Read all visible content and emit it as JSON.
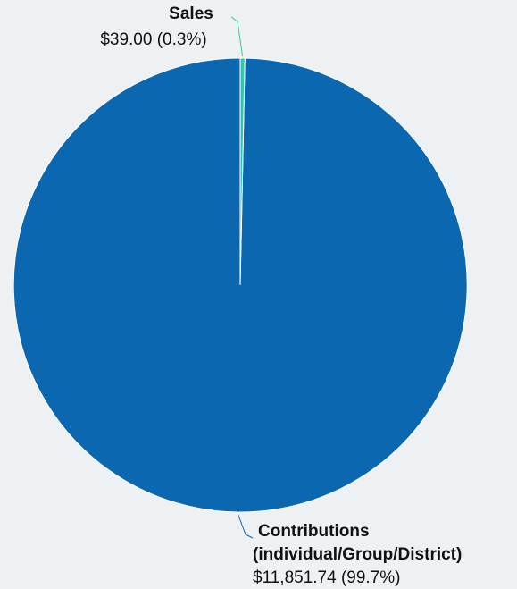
{
  "chart_data": {
    "type": "pie",
    "slices": [
      {
        "name": "Sales",
        "value": 39.0,
        "percent": 0.3,
        "value_label": "$39.00 (0.3%)",
        "color": "#3cc49a"
      },
      {
        "name_lines": [
          "Contributions",
          "(individual/Group/District)"
        ],
        "value": 11851.74,
        "percent": 99.7,
        "value_label": "$11,851.74 (99.7%)",
        "color": "#0b68b0"
      }
    ],
    "start_angle_deg": 0,
    "direction": "clockwise",
    "legend": "none"
  }
}
